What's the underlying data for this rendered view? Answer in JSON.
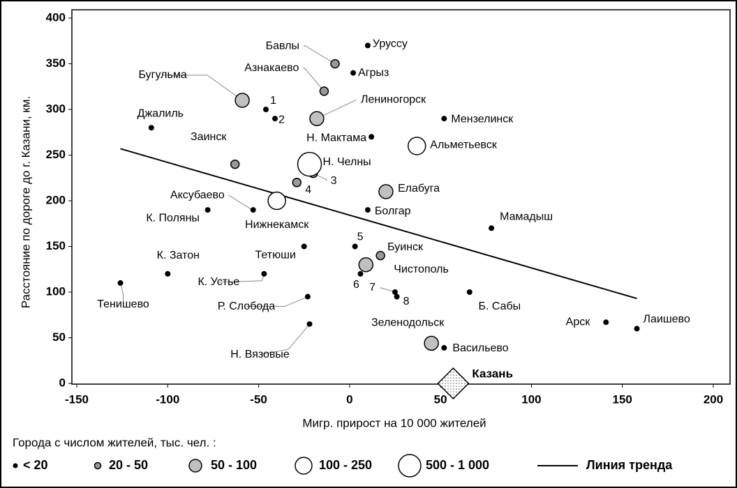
{
  "chart_data": {
    "type": "scatter",
    "x_label": "Мигр. прирост на 10 000 жителей",
    "y_label": "Расстояние по дороге до г. Казани, км.",
    "xlim": [
      -150,
      200
    ],
    "ylim": [
      0,
      400
    ],
    "xticks": [
      -150,
      -100,
      -50,
      0,
      50,
      100,
      150,
      200
    ],
    "yticks": [
      0,
      50,
      100,
      150,
      200,
      250,
      300,
      350,
      400
    ],
    "legend_title": "Города с числом жителей, тыс. чел. :",
    "series": [
      {
        "name": "< 20",
        "color": "#000000",
        "points": [
          {
            "label": "Уруссу",
            "x": 10,
            "y": 370
          },
          {
            "label": "Агрыз",
            "x": 2,
            "y": 340
          },
          {
            "label": "1",
            "x": -46,
            "y": 300
          },
          {
            "label": "2",
            "x": -41,
            "y": 290
          },
          {
            "label": "Мензелинск",
            "x": 52,
            "y": 290
          },
          {
            "label": "Джалиль",
            "x": -109,
            "y": 280
          },
          {
            "label": "Н. Мактама",
            "x": 12,
            "y": 270
          },
          {
            "label": "Аксубаево",
            "x": -53,
            "y": 190
          },
          {
            "label": "К. Поляны",
            "x": -78,
            "y": 190
          },
          {
            "label": "Болгар",
            "x": 10,
            "y": 190
          },
          {
            "label": "Мамадыш",
            "x": 78,
            "y": 170
          },
          {
            "label": "5",
            "x": 3,
            "y": 150
          },
          {
            "label": "Тетюши",
            "x": -25,
            "y": 150
          },
          {
            "label": "К. Затон",
            "x": -100,
            "y": 120
          },
          {
            "label": "К. Устье",
            "x": -47,
            "y": 120
          },
          {
            "label": "6",
            "x": 6,
            "y": 120
          },
          {
            "label": "7",
            "x": 25,
            "y": 100
          },
          {
            "label": "8",
            "x": 26,
            "y": 95
          },
          {
            "label": "Б. Сабы",
            "x": 66,
            "y": 100
          },
          {
            "label": "Тенишево",
            "x": -126,
            "y": 110
          },
          {
            "label": "Р. Слобода",
            "x": -23,
            "y": 95
          },
          {
            "label": "Арск",
            "x": 141,
            "y": 67
          },
          {
            "label": "Лаишево",
            "x": 158,
            "y": 60
          },
          {
            "label": "Н. Вязовые",
            "x": -22,
            "y": 65
          },
          {
            "label": "Васильево",
            "x": 52,
            "y": 39
          }
        ]
      },
      {
        "name": "20 - 50",
        "color": "#999999",
        "points": [
          {
            "label": "Бавлы",
            "x": -8,
            "y": 350
          },
          {
            "label": "Азнакаево",
            "x": -14,
            "y": 320
          },
          {
            "label": "Заинск",
            "x": -63,
            "y": 240
          },
          {
            "label": "3",
            "x": -20,
            "y": 230
          },
          {
            "label": "4",
            "x": -29,
            "y": 220
          },
          {
            "label": "Буинск",
            "x": 17,
            "y": 140
          }
        ]
      },
      {
        "name": "50 - 100",
        "color": "#c0c0c0",
        "points": [
          {
            "label": "Бугульма",
            "x": -59,
            "y": 310
          },
          {
            "label": "Лениногорск",
            "x": -18,
            "y": 290
          },
          {
            "label": "Елабуга",
            "x": 20,
            "y": 210
          },
          {
            "label": "Чистополь",
            "x": 9,
            "y": 130
          },
          {
            "label": "Зеленодольск",
            "x": 45,
            "y": 44
          }
        ]
      },
      {
        "name": "100 - 250",
        "color": "#ffffff",
        "points": [
          {
            "label": "Альметьевск",
            "x": 37,
            "y": 260
          },
          {
            "label": "Нижнекамск",
            "x": -40,
            "y": 200
          }
        ]
      },
      {
        "name": "500 - 1 000",
        "color": "#ffffff",
        "points": [
          {
            "label": "Н. Челны",
            "x": -22,
            "y": 240
          }
        ]
      }
    ],
    "center": {
      "label": "Казань",
      "x": 57,
      "y": 0
    },
    "trend": {
      "name": "Линия тренда",
      "x": [
        -126,
        158
      ],
      "y": [
        257,
        93
      ]
    }
  }
}
